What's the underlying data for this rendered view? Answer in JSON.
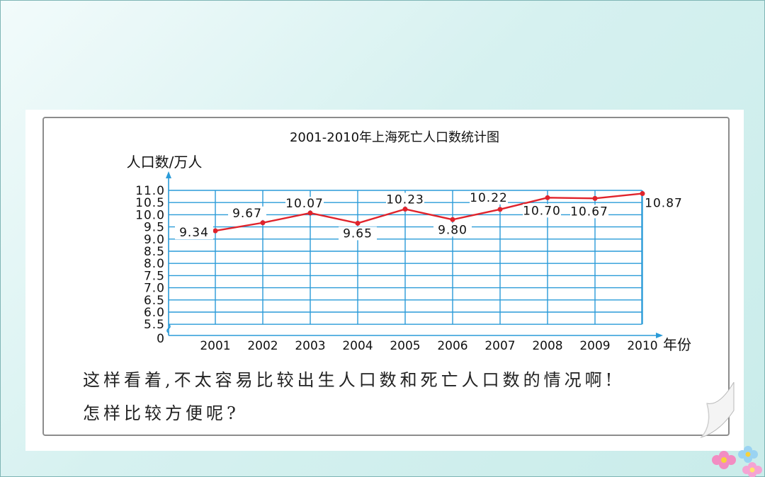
{
  "chart_data": {
    "type": "line",
    "title": "2001-2010年上海死亡人口数统计图",
    "ylabel": "人口数/万人",
    "xlabel": "年份",
    "x_unit_label": "年份",
    "categories": [
      "2001",
      "2002",
      "2003",
      "2004",
      "2005",
      "2006",
      "2007",
      "2008",
      "2009",
      "2010"
    ],
    "values": [
      9.34,
      9.67,
      10.07,
      9.65,
      10.23,
      9.8,
      10.22,
      10.7,
      10.67,
      10.87
    ],
    "value_labels": [
      "9.34",
      "9.67",
      "10.07",
      "9.65",
      "10.23",
      "9.80",
      "10.22",
      "10.70",
      "10.67",
      "10.87"
    ],
    "y_ticks": [
      "11.0",
      "10.5",
      "10.0",
      "9.5",
      "9.0",
      "8.5",
      "8.0",
      "7.5",
      "7.0",
      "6.5",
      "6.0",
      "5.5",
      "0"
    ],
    "ylim": [
      5.5,
      11.0
    ],
    "axis_break": true,
    "grid": true,
    "line_color": "#e0232b",
    "grid_color": "#2a9bd8"
  },
  "caption": {
    "line1": "这样看着,不太容易比较出生人口数和死亡人口数的情况啊!",
    "line2": "怎样比较方便呢?"
  }
}
